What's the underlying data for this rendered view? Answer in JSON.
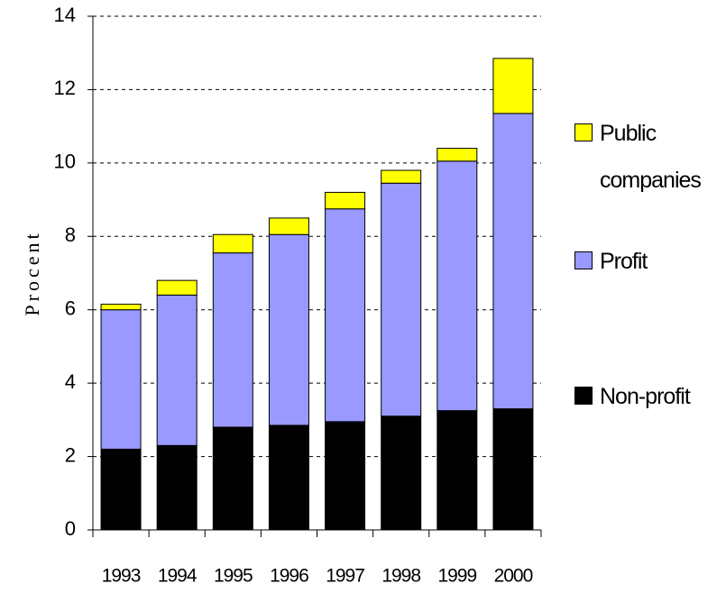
{
  "chart_data": {
    "type": "stacked_bar",
    "categories": [
      "1993",
      "1994",
      "1995",
      "1996",
      "1997",
      "1998",
      "1999",
      "2000"
    ],
    "series": [
      {
        "name": "Non-profit",
        "color": "#000000",
        "values": [
          2.2,
          2.3,
          2.8,
          2.85,
          2.95,
          3.1,
          3.25,
          3.3
        ]
      },
      {
        "name": "Profit",
        "color": "#9999ff",
        "values": [
          3.8,
          4.1,
          4.75,
          5.2,
          5.8,
          6.35,
          6.8,
          8.05
        ]
      },
      {
        "name": "Public companies",
        "color": "#ffff00",
        "values": [
          0.15,
          0.4,
          0.5,
          0.45,
          0.45,
          0.35,
          0.35,
          1.5
        ]
      }
    ],
    "y_label": "Procent",
    "ylim": [
      0,
      14
    ],
    "yticks": [
      0,
      2,
      4,
      6,
      8,
      10,
      12,
      14
    ],
    "grid": true
  }
}
